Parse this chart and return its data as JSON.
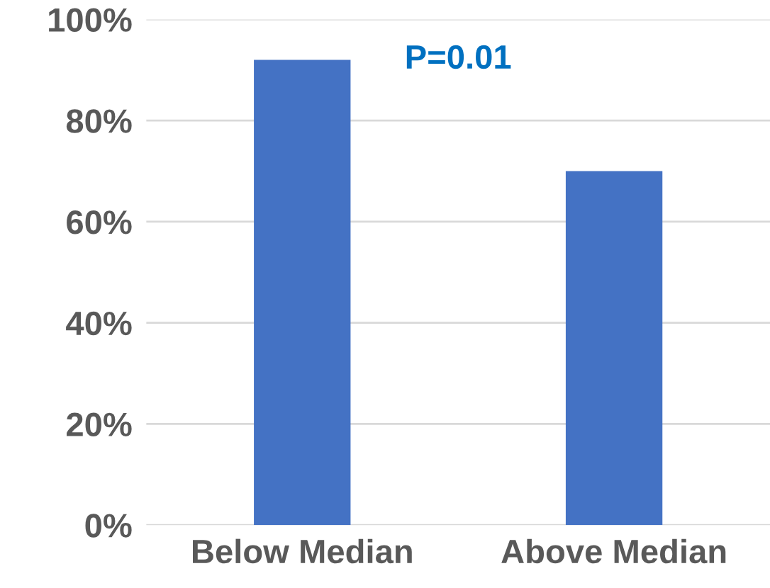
{
  "chart_data": {
    "type": "bar",
    "categories": [
      "Below Median",
      "Above Median"
    ],
    "values": [
      92,
      70
    ],
    "color": "#4472c4",
    "ylim": [
      0,
      100
    ],
    "yticks": [
      {
        "value": 0,
        "label": "0%"
      },
      {
        "value": 20,
        "label": "20%"
      },
      {
        "value": 40,
        "label": "40%"
      },
      {
        "value": 60,
        "label": "60%"
      },
      {
        "value": 80,
        "label": "80%"
      },
      {
        "value": 100,
        "label": "100%"
      }
    ],
    "grid": "y",
    "annotations": [
      "P=0.01"
    ]
  }
}
